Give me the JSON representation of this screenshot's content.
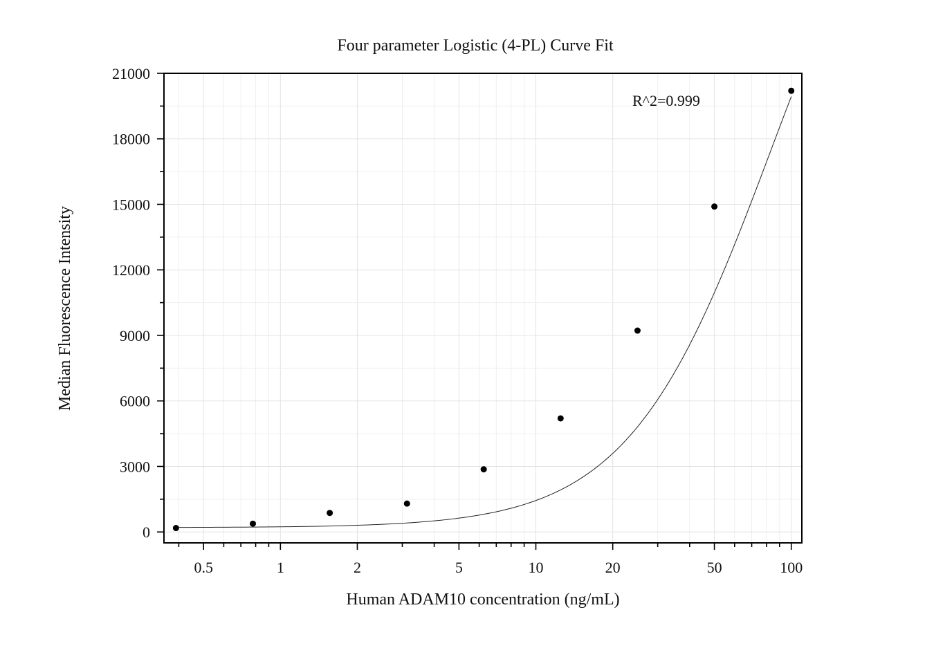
{
  "chart_data": {
    "type": "scatter",
    "title": "Four parameter Logistic (4-PL) Curve Fit",
    "xlabel": "Human ADAM10 concentration (ng/mL)",
    "ylabel": "Median Fluorescence Intensity",
    "x_scale": "log",
    "xlim": [
      0.35,
      110
    ],
    "ylim": [
      -500,
      21000
    ],
    "x_ticks": [
      0.5,
      1,
      2,
      5,
      10,
      20,
      50,
      100
    ],
    "x_tick_labels": [
      "0.5",
      "1",
      "2",
      "5",
      "10",
      "20",
      "50",
      "100"
    ],
    "y_ticks": [
      0,
      3000,
      6000,
      9000,
      12000,
      15000,
      18000,
      21000
    ],
    "y_tick_labels": [
      "0",
      "3000",
      "6000",
      "9000",
      "12000",
      "15000",
      "18000",
      "21000"
    ],
    "grid": true,
    "annotation": "R^2=0.999",
    "points": [
      {
        "x": 0.39,
        "y": 180
      },
      {
        "x": 0.78,
        "y": 380
      },
      {
        "x": 1.56,
        "y": 870
      },
      {
        "x": 3.13,
        "y": 1300
      },
      {
        "x": 6.25,
        "y": 2870
      },
      {
        "x": 12.5,
        "y": 5200
      },
      {
        "x": 25,
        "y": 9220
      },
      {
        "x": 50,
        "y": 14900
      },
      {
        "x": 100,
        "y": 20200
      }
    ],
    "fit_curve": {
      "model": "4-PL",
      "A": 200,
      "B": 1.55,
      "C": 84,
      "D": 35000
    }
  }
}
